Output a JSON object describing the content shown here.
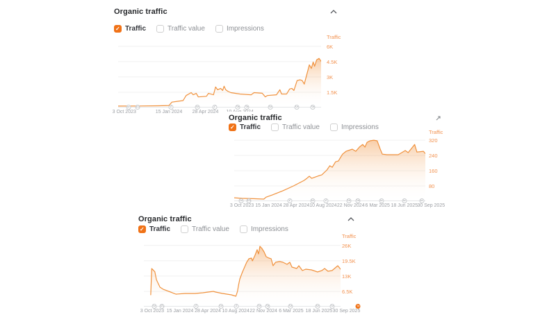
{
  "colors": {
    "accent_orange": "#f07217",
    "line_orange": "#f0913c",
    "axis_label_orange": "#f2914e",
    "muted_text": "#9b9ea3",
    "title_text": "#26282b"
  },
  "panels": [
    {
      "title": "Organic traffic",
      "collapse_icon": "chevron-up",
      "legend": [
        {
          "label": "Traffic",
          "checked": true
        },
        {
          "label": "Traffic value",
          "checked": false
        },
        {
          "label": "Impressions",
          "checked": false
        }
      ]
    },
    {
      "title": "Organic traffic",
      "collapse_icon": "expand-diagonal",
      "legend": [
        {
          "label": "Traffic",
          "checked": true
        },
        {
          "label": "Traffic value",
          "checked": false
        },
        {
          "label": "Impressions",
          "checked": false
        }
      ]
    },
    {
      "title": "Organic traffic",
      "collapse_icon": "chevron-up",
      "legend": [
        {
          "label": "Traffic",
          "checked": true
        },
        {
          "label": "Traffic value",
          "checked": false
        },
        {
          "label": "Impressions",
          "checked": false
        }
      ]
    }
  ],
  "chart_data": [
    {
      "type": "area",
      "title": "Organic traffic",
      "ylabel": "Traffic",
      "grid": true,
      "legend_position": "top-left",
      "y_top": 6600,
      "ylim": [
        0,
        6600
      ],
      "y_ticks": [
        {
          "label": "6K",
          "value": 6000
        },
        {
          "label": "4.5K",
          "value": 4500
        },
        {
          "label": "3K",
          "value": 3000
        },
        {
          "label": "1.5K",
          "value": 1500
        }
      ],
      "x_ticks": [
        {
          "label": "3 Oct 2023",
          "pos": 0.03
        },
        {
          "label": "15 Jan 2024",
          "pos": 0.25
        },
        {
          "label": "28 Apr 2024",
          "pos": 0.43
        },
        {
          "label": "10 Aug 2024",
          "pos": 0.6
        }
      ],
      "markers": [
        {
          "label": "G",
          "pos": 0.05
        },
        {
          "label": "10",
          "pos": 0.095
        },
        {
          "label": "2",
          "pos": 0.26
        },
        {
          "label": "G",
          "pos": 0.39
        },
        {
          "label": "2",
          "pos": 0.475
        },
        {
          "label": "G",
          "pos": 0.59
        },
        {
          "label": "G",
          "pos": 0.635
        },
        {
          "label": "G",
          "pos": 0.75
        },
        {
          "label": "G",
          "pos": 0.88
        },
        {
          "label": "G",
          "pos": 0.96
        }
      ],
      "series": [
        [
          0,
          140
        ],
        [
          0.1,
          150
        ],
        [
          0.2,
          170
        ],
        [
          0.25,
          200
        ],
        [
          0.265,
          530
        ],
        [
          0.32,
          680
        ],
        [
          0.335,
          1180
        ],
        [
          0.36,
          1460
        ],
        [
          0.37,
          1250
        ],
        [
          0.385,
          1390
        ],
        [
          0.395,
          1040
        ],
        [
          0.435,
          1100
        ],
        [
          0.445,
          1390
        ],
        [
          0.47,
          1250
        ],
        [
          0.48,
          2020
        ],
        [
          0.49,
          1745
        ],
        [
          0.505,
          1880
        ],
        [
          0.515,
          1675
        ],
        [
          0.522,
          2090
        ],
        [
          0.53,
          1745
        ],
        [
          0.54,
          1600
        ],
        [
          0.555,
          1465
        ],
        [
          0.6,
          1325
        ],
        [
          0.655,
          1250
        ],
        [
          0.67,
          1465
        ],
        [
          0.71,
          1400
        ],
        [
          0.725,
          1050
        ],
        [
          0.735,
          1180
        ],
        [
          0.78,
          1250
        ],
        [
          0.797,
          1745
        ],
        [
          0.805,
          1325
        ],
        [
          0.83,
          1325
        ],
        [
          0.845,
          1815
        ],
        [
          0.856,
          1880
        ],
        [
          0.866,
          1675
        ],
        [
          0.882,
          2650
        ],
        [
          0.897,
          2720
        ],
        [
          0.907,
          2650
        ],
        [
          0.917,
          2300
        ],
        [
          0.93,
          3280
        ],
        [
          0.942,
          4190
        ],
        [
          0.952,
          3840
        ],
        [
          0.961,
          4465
        ],
        [
          0.968,
          4050
        ],
        [
          0.978,
          4675
        ],
        [
          0.99,
          4815
        ],
        [
          1,
          4535
        ]
      ]
    },
    {
      "type": "area",
      "title": "Organic traffic",
      "ylabel": "Traffic",
      "grid": true,
      "legend_position": "top-left",
      "y_top": 346,
      "ylim": [
        0,
        346
      ],
      "y_ticks": [
        {
          "label": "320",
          "value": 320
        },
        {
          "label": "240",
          "value": 240
        },
        {
          "label": "160",
          "value": 160
        },
        {
          "label": "80",
          "value": 80
        }
      ],
      "x_ticks": [
        {
          "label": "3 Oct 2023",
          "pos": 0.04
        },
        {
          "label": "15 Jan 2024",
          "pos": 0.18
        },
        {
          "label": "28 Apr 2024",
          "pos": 0.325
        },
        {
          "label": "10 Aug 2024",
          "pos": 0.465
        },
        {
          "label": "22 Nov 2024",
          "pos": 0.61
        },
        {
          "label": "6 Mar 2025",
          "pos": 0.75
        },
        {
          "label": "18 Jun 2025",
          "pos": 0.89
        },
        {
          "label": "30 Sep 2025",
          "pos": 1.03
        }
      ],
      "markers": [
        {
          "label": "G",
          "pos": 0.036
        },
        {
          "label": "10",
          "pos": 0.076
        },
        {
          "label": "2",
          "pos": 0.29
        },
        {
          "label": "G",
          "pos": 0.41
        },
        {
          "label": "2",
          "pos": 0.48
        },
        {
          "label": "G",
          "pos": 0.6
        },
        {
          "label": "G",
          "pos": 0.648
        },
        {
          "label": "G",
          "pos": 0.77
        },
        {
          "label": "G",
          "pos": 0.89
        },
        {
          "label": "G",
          "pos": 0.98
        }
      ],
      "series": [
        [
          0,
          18
        ],
        [
          0.04,
          15
        ],
        [
          0.1,
          13
        ],
        [
          0.155,
          11
        ],
        [
          0.167,
          21
        ],
        [
          0.2,
          33
        ],
        [
          0.255,
          55
        ],
        [
          0.31,
          80
        ],
        [
          0.365,
          109
        ],
        [
          0.38,
          120
        ],
        [
          0.393,
          131
        ],
        [
          0.405,
          120
        ],
        [
          0.447,
          135
        ],
        [
          0.458,
          138
        ],
        [
          0.485,
          164
        ],
        [
          0.5,
          186
        ],
        [
          0.513,
          178
        ],
        [
          0.53,
          207
        ],
        [
          0.545,
          211
        ],
        [
          0.556,
          229
        ],
        [
          0.567,
          247
        ],
        [
          0.585,
          262
        ],
        [
          0.618,
          273
        ],
        [
          0.636,
          262
        ],
        [
          0.655,
          284
        ],
        [
          0.672,
          298
        ],
        [
          0.684,
          284
        ],
        [
          0.695,
          309
        ],
        [
          0.71,
          317
        ],
        [
          0.73,
          320
        ],
        [
          0.748,
          317
        ],
        [
          0.764,
          273
        ],
        [
          0.775,
          247
        ],
        [
          0.8,
          244
        ],
        [
          0.858,
          244
        ],
        [
          0.895,
          266
        ],
        [
          0.91,
          255
        ],
        [
          0.944,
          298
        ],
        [
          0.956,
          258
        ],
        [
          0.99,
          262
        ],
        [
          1,
          250
        ]
      ]
    },
    {
      "type": "area",
      "title": "Organic traffic",
      "ylabel": "Traffic",
      "grid": true,
      "legend_position": "top-left",
      "y_top": 28600,
      "ylim": [
        0,
        28600
      ],
      "y_ticks": [
        {
          "label": "26K",
          "value": 26000
        },
        {
          "label": "19.5K",
          "value": 19500
        },
        {
          "label": "13K",
          "value": 13000
        },
        {
          "label": "6.5K",
          "value": 6500
        }
      ],
      "x_ticks": [
        {
          "label": "3 Oct 2023",
          "pos": 0.042
        },
        {
          "label": "15 Jan 2024",
          "pos": 0.184
        },
        {
          "label": "28 Apr 2024",
          "pos": 0.325
        },
        {
          "label": "10 Aug 2024",
          "pos": 0.467
        },
        {
          "label": "22 Nov 2024",
          "pos": 0.608
        },
        {
          "label": "6 Mar 2025",
          "pos": 0.749
        },
        {
          "label": "18 Jun 2025",
          "pos": 0.89
        },
        {
          "label": "30 Sep 2025",
          "pos": 1.03
        }
      ],
      "markers": [
        {
          "label": "G",
          "pos": 0.053
        },
        {
          "label": "10",
          "pos": 0.092
        },
        {
          "label": "2",
          "pos": 0.265
        },
        {
          "label": "G",
          "pos": 0.392
        },
        {
          "label": "2",
          "pos": 0.47
        },
        {
          "label": "G",
          "pos": 0.587
        },
        {
          "label": "G",
          "pos": 0.63
        },
        {
          "label": "G",
          "pos": 0.746
        },
        {
          "label": "G",
          "pos": 0.883
        },
        {
          "label": "G",
          "pos": 0.958
        },
        {
          "label": "G",
          "pos": 1.09,
          "highlight": true
        }
      ],
      "series": [
        [
          0.035,
          5000
        ],
        [
          0.04,
          16200
        ],
        [
          0.05,
          15300
        ],
        [
          0.056,
          14800
        ],
        [
          0.064,
          11400
        ],
        [
          0.072,
          10000
        ],
        [
          0.082,
          8260
        ],
        [
          0.1,
          7300
        ],
        [
          0.127,
          6500
        ],
        [
          0.163,
          5300
        ],
        [
          0.21,
          5600
        ],
        [
          0.26,
          5600
        ],
        [
          0.3,
          5900
        ],
        [
          0.353,
          6500
        ],
        [
          0.365,
          6200
        ],
        [
          0.4,
          5600
        ],
        [
          0.445,
          5000
        ],
        [
          0.468,
          4430
        ],
        [
          0.476,
          6500
        ],
        [
          0.482,
          9400
        ],
        [
          0.488,
          11800
        ],
        [
          0.5,
          14450
        ],
        [
          0.512,
          16800
        ],
        [
          0.523,
          18900
        ],
        [
          0.534,
          20350
        ],
        [
          0.547,
          20650
        ],
        [
          0.552,
          19470
        ],
        [
          0.565,
          21830
        ],
        [
          0.576,
          24200
        ],
        [
          0.583,
          22400
        ],
        [
          0.59,
          25650
        ],
        [
          0.6,
          24780
        ],
        [
          0.611,
          23300
        ],
        [
          0.622,
          21240
        ],
        [
          0.636,
          20650
        ],
        [
          0.647,
          20360
        ],
        [
          0.657,
          17400
        ],
        [
          0.67,
          18880
        ],
        [
          0.69,
          19175
        ],
        [
          0.707,
          18880
        ],
        [
          0.728,
          18000
        ],
        [
          0.742,
          18880
        ],
        [
          0.753,
          16800
        ],
        [
          0.777,
          16225
        ],
        [
          0.788,
          17400
        ],
        [
          0.806,
          15340
        ],
        [
          0.823,
          15930
        ],
        [
          0.852,
          15635
        ],
        [
          0.883,
          14750
        ],
        [
          0.905,
          15340
        ],
        [
          0.919,
          16225
        ],
        [
          0.936,
          15045
        ],
        [
          0.957,
          15340
        ],
        [
          0.986,
          17400
        ],
        [
          1,
          15930
        ]
      ]
    }
  ]
}
